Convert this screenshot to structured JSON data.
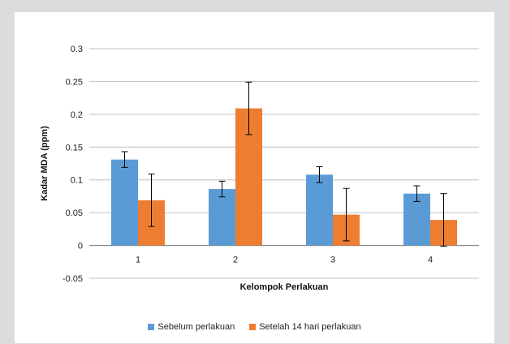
{
  "colors": {
    "series1": "#5b9bd5",
    "series2": "#ed7d31",
    "grid": "#bfbfbf",
    "page_bg": "#dcdcdc"
  },
  "chart_data": {
    "type": "bar",
    "xlabel": "Kelompok Perlakuan",
    "ylabel": "Kadar MDA (ppm)",
    "ylim": [
      -0.05,
      0.3
    ],
    "yticks": [
      -0.05,
      0,
      0.05,
      0.1,
      0.15,
      0.2,
      0.25,
      0.3
    ],
    "ytick_labels": [
      "-0.05",
      "0",
      "0.05",
      "0.1",
      "0.15",
      "0.2",
      "0.25",
      "0.3"
    ],
    "categories": [
      "1",
      "2",
      "3",
      "4"
    ],
    "grid": true,
    "legend_position": "bottom",
    "series": [
      {
        "name": "Sebelum perlakuan",
        "values": [
          0.131,
          0.086,
          0.108,
          0.079
        ],
        "errors": [
          0.012,
          0.012,
          0.012,
          0.012
        ]
      },
      {
        "name": "Setelah 14 hari perlakuan",
        "values": [
          0.069,
          0.209,
          0.047,
          0.039
        ],
        "errors": [
          0.04,
          0.04,
          0.04,
          0.04
        ]
      }
    ]
  }
}
